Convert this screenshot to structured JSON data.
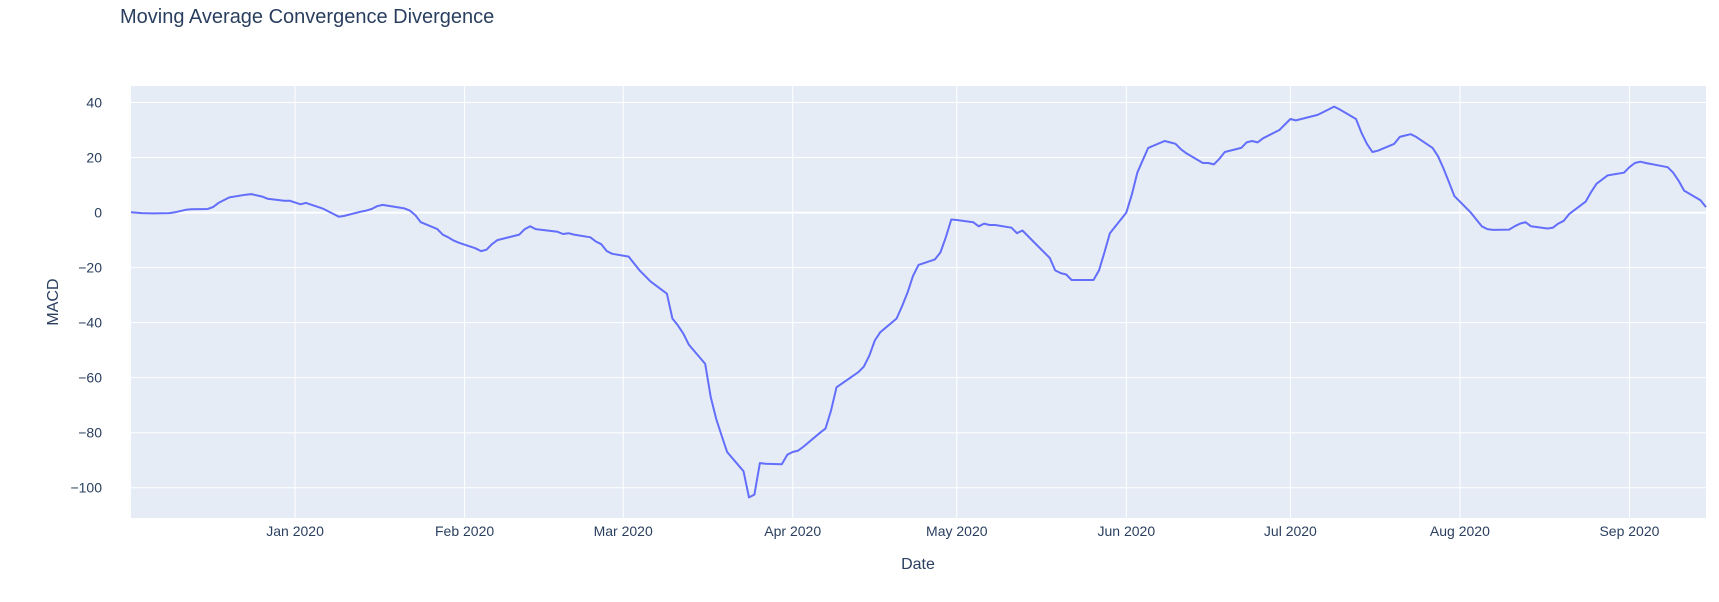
{
  "chart_data": {
    "type": "line",
    "title": "Moving Average Convergence Divergence",
    "xlabel": "Date",
    "ylabel": "MACD",
    "xlim": [
      "2019-12-02",
      "2020-09-15"
    ],
    "ylim": [
      -111,
      46
    ],
    "grid": true,
    "x_ticks": [
      {
        "date": "2020-01-01",
        "label": "Jan 2020"
      },
      {
        "date": "2020-02-01",
        "label": "Feb 2020"
      },
      {
        "date": "2020-03-01",
        "label": "Mar 2020"
      },
      {
        "date": "2020-04-01",
        "label": "Apr 2020"
      },
      {
        "date": "2020-05-01",
        "label": "May 2020"
      },
      {
        "date": "2020-06-01",
        "label": "Jun 2020"
      },
      {
        "date": "2020-07-01",
        "label": "Jul 2020"
      },
      {
        "date": "2020-08-01",
        "label": "Aug 2020"
      },
      {
        "date": "2020-09-01",
        "label": "Sep 2020"
      }
    ],
    "y_ticks": [
      {
        "value": 40,
        "label": "40"
      },
      {
        "value": 20,
        "label": "20"
      },
      {
        "value": 0,
        "label": "0"
      },
      {
        "value": -20,
        "label": "−20"
      },
      {
        "value": -40,
        "label": "−40"
      },
      {
        "value": -60,
        "label": "−60"
      },
      {
        "value": -80,
        "label": "−80"
      },
      {
        "value": -100,
        "label": "−100"
      }
    ],
    "series": [
      {
        "color": "#636efa",
        "points": [
          [
            "2019-12-02",
            0.1
          ],
          [
            "2019-12-04",
            -0.2
          ],
          [
            "2019-12-06",
            -0.3
          ],
          [
            "2019-12-09",
            -0.2
          ],
          [
            "2019-12-10",
            0.1
          ],
          [
            "2019-12-12",
            1.0
          ],
          [
            "2019-12-13",
            1.2
          ],
          [
            "2019-12-16",
            1.3
          ],
          [
            "2019-12-17",
            2.0
          ],
          [
            "2019-12-18",
            3.5
          ],
          [
            "2019-12-20",
            5.5
          ],
          [
            "2019-12-23",
            6.5
          ],
          [
            "2019-12-24",
            6.7
          ],
          [
            "2019-12-26",
            5.8
          ],
          [
            "2019-12-27",
            5.0
          ],
          [
            "2019-12-30",
            4.3
          ],
          [
            "2019-12-31",
            4.3
          ],
          [
            "2020-01-02",
            3.0
          ],
          [
            "2020-01-03",
            3.5
          ],
          [
            "2020-01-06",
            1.5
          ],
          [
            "2020-01-08",
            -0.5
          ],
          [
            "2020-01-09",
            -1.5
          ],
          [
            "2020-01-10",
            -1.2
          ],
          [
            "2020-01-13",
            0.3
          ],
          [
            "2020-01-14",
            0.7
          ],
          [
            "2020-01-15",
            1.3
          ],
          [
            "2020-01-16",
            2.3
          ],
          [
            "2020-01-17",
            2.8
          ],
          [
            "2020-01-21",
            1.5
          ],
          [
            "2020-01-22",
            0.7
          ],
          [
            "2020-01-23",
            -1.0
          ],
          [
            "2020-01-24",
            -3.5
          ],
          [
            "2020-01-27",
            -6.0
          ],
          [
            "2020-01-28",
            -8.0
          ],
          [
            "2020-01-29",
            -9.0
          ],
          [
            "2020-01-30",
            -10.2
          ],
          [
            "2020-01-31",
            -11.0
          ],
          [
            "2020-02-03",
            -13.0
          ],
          [
            "2020-02-04",
            -14.0
          ],
          [
            "2020-02-05",
            -13.5
          ],
          [
            "2020-02-06",
            -11.5
          ],
          [
            "2020-02-07",
            -10.0
          ],
          [
            "2020-02-10",
            -8.5
          ],
          [
            "2020-02-11",
            -8.0
          ],
          [
            "2020-02-12",
            -6.0
          ],
          [
            "2020-02-13",
            -5.0
          ],
          [
            "2020-02-14",
            -6.0
          ],
          [
            "2020-02-18",
            -7.0
          ],
          [
            "2020-02-19",
            -7.8
          ],
          [
            "2020-02-20",
            -7.5
          ],
          [
            "2020-02-21",
            -8.0
          ],
          [
            "2020-02-24",
            -9.0
          ],
          [
            "2020-02-25",
            -10.5
          ],
          [
            "2020-02-26",
            -11.5
          ],
          [
            "2020-02-27",
            -14.0
          ],
          [
            "2020-02-28",
            -15.0
          ],
          [
            "2020-03-02",
            -16.0
          ],
          [
            "2020-03-03",
            -18.5
          ],
          [
            "2020-03-04",
            -21.0
          ],
          [
            "2020-03-05",
            -23.0
          ],
          [
            "2020-03-06",
            -25.0
          ],
          [
            "2020-03-09",
            -29.5
          ],
          [
            "2020-03-10",
            -38.5
          ],
          [
            "2020-03-11",
            -41.0
          ],
          [
            "2020-03-12",
            -44.0
          ],
          [
            "2020-03-13",
            -48.0
          ],
          [
            "2020-03-16",
            -55.0
          ],
          [
            "2020-03-17",
            -67.0
          ],
          [
            "2020-03-18",
            -75.0
          ],
          [
            "2020-03-19",
            -81.0
          ],
          [
            "2020-03-20",
            -87.0
          ],
          [
            "2020-03-23",
            -94.0
          ],
          [
            "2020-03-24",
            -103.5
          ],
          [
            "2020-03-25",
            -102.5
          ],
          [
            "2020-03-26",
            -91.0
          ],
          [
            "2020-03-27",
            -91.3
          ],
          [
            "2020-03-30",
            -91.5
          ],
          [
            "2020-03-31",
            -88.0
          ],
          [
            "2020-04-01",
            -87.0
          ],
          [
            "2020-04-02",
            -86.5
          ],
          [
            "2020-04-03",
            -85.0
          ],
          [
            "2020-04-06",
            -80.0
          ],
          [
            "2020-04-07",
            -78.5
          ],
          [
            "2020-04-08",
            -72.0
          ],
          [
            "2020-04-09",
            -63.5
          ],
          [
            "2020-04-13",
            -58.0
          ],
          [
            "2020-04-14",
            -56.0
          ],
          [
            "2020-04-15",
            -52.0
          ],
          [
            "2020-04-16",
            -46.5
          ],
          [
            "2020-04-17",
            -43.5
          ],
          [
            "2020-04-20",
            -38.5
          ],
          [
            "2020-04-21",
            -34.0
          ],
          [
            "2020-04-22",
            -29.0
          ],
          [
            "2020-04-23",
            -23.0
          ],
          [
            "2020-04-24",
            -19.0
          ],
          [
            "2020-04-27",
            -17.0
          ],
          [
            "2020-04-28",
            -14.5
          ],
          [
            "2020-04-29",
            -9.0
          ],
          [
            "2020-04-30",
            -2.5
          ],
          [
            "2020-05-01",
            -2.7
          ],
          [
            "2020-05-04",
            -3.5
          ],
          [
            "2020-05-05",
            -5.0
          ],
          [
            "2020-05-06",
            -4.0
          ],
          [
            "2020-05-07",
            -4.5
          ],
          [
            "2020-05-08",
            -4.5
          ],
          [
            "2020-05-11",
            -5.5
          ],
          [
            "2020-05-12",
            -7.5
          ],
          [
            "2020-05-13",
            -6.5
          ],
          [
            "2020-05-14",
            -8.5
          ],
          [
            "2020-05-15",
            -10.5
          ],
          [
            "2020-05-18",
            -16.5
          ],
          [
            "2020-05-19",
            -21.0
          ],
          [
            "2020-05-20",
            -22.0
          ],
          [
            "2020-05-21",
            -22.5
          ],
          [
            "2020-05-22",
            -24.5
          ],
          [
            "2020-05-26",
            -24.5
          ],
          [
            "2020-05-27",
            -21.0
          ],
          [
            "2020-05-28",
            -14.5
          ],
          [
            "2020-05-29",
            -7.5
          ],
          [
            "2020-06-01",
            0.0
          ],
          [
            "2020-06-02",
            6.5
          ],
          [
            "2020-06-03",
            14.5
          ],
          [
            "2020-06-04",
            19.0
          ],
          [
            "2020-06-05",
            23.5
          ],
          [
            "2020-06-08",
            26.0
          ],
          [
            "2020-06-09",
            25.5
          ],
          [
            "2020-06-10",
            25.0
          ],
          [
            "2020-06-11",
            23.0
          ],
          [
            "2020-06-12",
            21.5
          ],
          [
            "2020-06-15",
            18.0
          ],
          [
            "2020-06-16",
            18.0
          ],
          [
            "2020-06-17",
            17.5
          ],
          [
            "2020-06-18",
            19.5
          ],
          [
            "2020-06-19",
            22.0
          ],
          [
            "2020-06-22",
            23.5
          ],
          [
            "2020-06-23",
            25.5
          ],
          [
            "2020-06-24",
            26.0
          ],
          [
            "2020-06-25",
            25.5
          ],
          [
            "2020-06-26",
            27.0
          ],
          [
            "2020-06-29",
            30.0
          ],
          [
            "2020-06-30",
            32.0
          ],
          [
            "2020-07-01",
            34.0
          ],
          [
            "2020-07-02",
            33.5
          ],
          [
            "2020-07-06",
            35.5
          ],
          [
            "2020-07-07",
            36.5
          ],
          [
            "2020-07-08",
            37.5
          ],
          [
            "2020-07-09",
            38.5
          ],
          [
            "2020-07-10",
            37.5
          ],
          [
            "2020-07-13",
            34.0
          ],
          [
            "2020-07-14",
            29.0
          ],
          [
            "2020-07-15",
            25.0
          ],
          [
            "2020-07-16",
            22.0
          ],
          [
            "2020-07-17",
            22.5
          ],
          [
            "2020-07-20",
            25.0
          ],
          [
            "2020-07-21",
            27.5
          ],
          [
            "2020-07-22",
            28.0
          ],
          [
            "2020-07-23",
            28.5
          ],
          [
            "2020-07-24",
            27.5
          ],
          [
            "2020-07-27",
            23.5
          ],
          [
            "2020-07-28",
            20.5
          ],
          [
            "2020-07-29",
            16.0
          ],
          [
            "2020-07-30",
            11.0
          ],
          [
            "2020-07-31",
            6.0
          ],
          [
            "2020-08-03",
            0.0
          ],
          [
            "2020-08-04",
            -2.5
          ],
          [
            "2020-08-05",
            -5.0
          ],
          [
            "2020-08-06",
            -6.0
          ],
          [
            "2020-08-07",
            -6.3
          ],
          [
            "2020-08-10",
            -6.2
          ],
          [
            "2020-08-11",
            -5.0
          ],
          [
            "2020-08-12",
            -4.0
          ],
          [
            "2020-08-13",
            -3.5
          ],
          [
            "2020-08-14",
            -5.0
          ],
          [
            "2020-08-17",
            -5.8
          ],
          [
            "2020-08-18",
            -5.5
          ],
          [
            "2020-08-19",
            -4.0
          ],
          [
            "2020-08-20",
            -3.0
          ],
          [
            "2020-08-21",
            -0.5
          ],
          [
            "2020-08-24",
            4.0
          ],
          [
            "2020-08-25",
            7.5
          ],
          [
            "2020-08-26",
            10.5
          ],
          [
            "2020-08-27",
            12.0
          ],
          [
            "2020-08-28",
            13.5
          ],
          [
            "2020-08-31",
            14.5
          ],
          [
            "2020-09-01",
            16.5
          ],
          [
            "2020-09-02",
            18.0
          ],
          [
            "2020-09-03",
            18.5
          ],
          [
            "2020-09-04",
            18.0
          ],
          [
            "2020-09-08",
            16.5
          ],
          [
            "2020-09-09",
            14.5
          ],
          [
            "2020-09-10",
            11.5
          ],
          [
            "2020-09-11",
            8.0
          ],
          [
            "2020-09-14",
            4.5
          ],
          [
            "2020-09-15",
            2.0
          ]
        ]
      }
    ]
  }
}
